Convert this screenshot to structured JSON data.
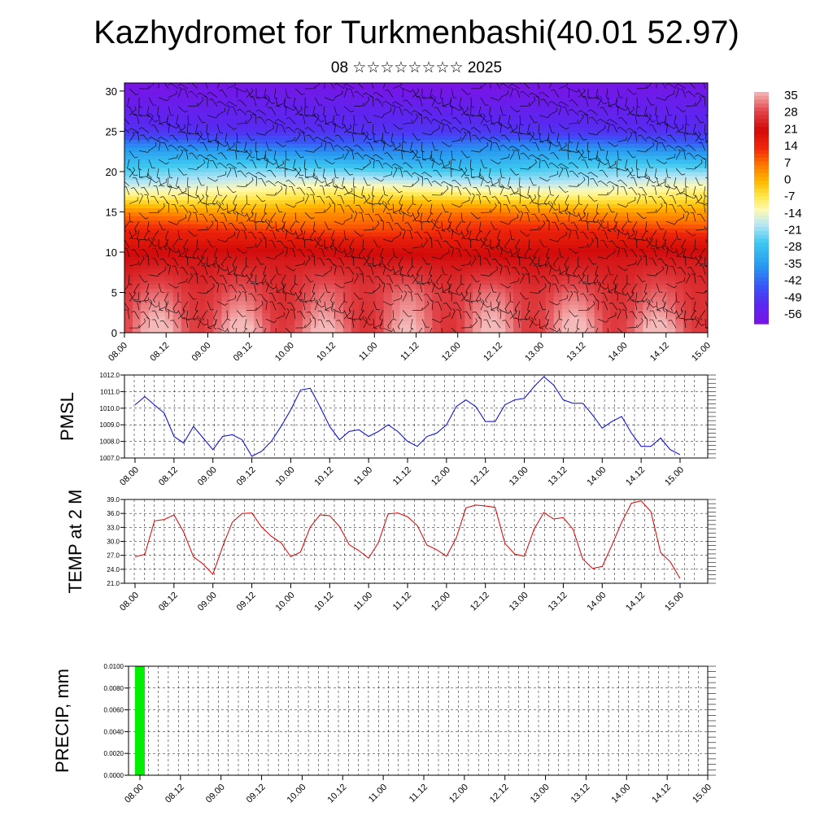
{
  "title": "Kazhydromet for Turkmenbashi(40.01 52.97)",
  "subtitle": "08 ☆☆☆☆☆☆☆☆ 2025",
  "x_ticks": [
    "08.00",
    "08.12",
    "09.00",
    "09.12",
    "10.00",
    "10.12",
    "11.00",
    "11.12",
    "12.00",
    "12.12",
    "13.00",
    "13.12",
    "14.00",
    "14.12",
    "15.00"
  ],
  "colors": {
    "pmsl_line": "#0000dd",
    "temp_line": "#dd0000",
    "precip_bar": "#00ee00"
  },
  "chart_data": [
    {
      "type": "heatmap",
      "name": "temperature-wind-cross-section",
      "xlabel": "",
      "ylabel": "",
      "xlim": [
        "08.00",
        "15.00"
      ],
      "ylim": [
        0,
        31
      ],
      "y_ticks": [
        0,
        5,
        10,
        15,
        20,
        25,
        30
      ],
      "colorbar_labels": [
        35,
        28,
        21,
        14,
        7,
        0,
        -7,
        -14,
        -21,
        -28,
        -35,
        -42,
        -49,
        -56
      ],
      "colorbar_range": [
        -60,
        38
      ],
      "profile_note_levels": [
        0,
        5,
        10,
        12,
        15,
        17,
        19,
        21,
        23,
        25,
        31
      ],
      "profile_values": [
        34,
        30,
        22,
        16,
        5,
        -7,
        -18,
        -28,
        -38,
        -50,
        -60
      ]
    },
    {
      "type": "line",
      "name": "pmsl",
      "ylabel": "PMSL",
      "ylim": [
        1007.0,
        1012.0
      ],
      "y_ticks": [
        "1007.0",
        "1008.0",
        "1009.0",
        "1010.0",
        "1011.0",
        "1012.0"
      ],
      "series": [
        {
          "values": [
            1010.2,
            1010.7,
            1010.2,
            1009.7,
            1008.3,
            1007.9,
            1008.9,
            1008.2,
            1007.5,
            1008.3,
            1008.4,
            1008.1,
            1007.1,
            1007.4,
            1008.0,
            1008.9,
            1009.9,
            1011.1,
            1011.2,
            1010.1,
            1008.9,
            1008.1,
            1008.6,
            1008.7,
            1008.3,
            1008.6,
            1009.0,
            1008.6,
            1008.0,
            1007.7,
            1008.3,
            1008.5,
            1009.0,
            1010.1,
            1010.5,
            1010.1,
            1009.2,
            1009.2,
            1010.2,
            1010.5,
            1010.6,
            1011.3,
            1011.9,
            1011.4,
            1010.5,
            1010.3,
            1010.3,
            1009.6,
            1008.8,
            1009.2,
            1009.5,
            1008.5,
            1007.7,
            1007.7,
            1008.2,
            1007.5,
            1007.2
          ]
        }
      ]
    },
    {
      "type": "line",
      "name": "temp-2m",
      "ylabel": "TEMP at 2 M",
      "ylim": [
        21.0,
        39.0
      ],
      "y_ticks": [
        "21.0",
        "24.0",
        "27.0",
        "30.0",
        "33.0",
        "36.0",
        "39.0"
      ],
      "series": [
        {
          "values": [
            26.7,
            27.2,
            34.4,
            34.7,
            35.7,
            32.0,
            26.7,
            25.1,
            22.9,
            28.9,
            34.1,
            36.0,
            36.1,
            33.1,
            31.1,
            29.7,
            26.7,
            27.7,
            33.1,
            35.7,
            35.5,
            33.2,
            29.3,
            28.0,
            26.4,
            29.7,
            35.9,
            36.1,
            35.3,
            33.4,
            29.2,
            28.2,
            26.8,
            30.7,
            37.2,
            37.8,
            37.6,
            37.3,
            29.6,
            27.3,
            26.8,
            32.6,
            36.2,
            34.8,
            35.1,
            32.6,
            26.2,
            24.2,
            24.6,
            29.2,
            34.1,
            38.2,
            38.7,
            36.4,
            27.6,
            25.6,
            22.0
          ]
        }
      ]
    },
    {
      "type": "bar",
      "name": "precip",
      "ylabel": "PRECIP, mm",
      "ylim": [
        0,
        0.01
      ],
      "y_ticks": [
        "0.0000",
        "0.0020",
        "0.0040",
        "0.0060",
        "0.0080",
        "0.0100"
      ],
      "bars": [
        {
          "x_start": "08.00",
          "x_end": "08.01",
          "value": 0.01
        }
      ]
    }
  ]
}
